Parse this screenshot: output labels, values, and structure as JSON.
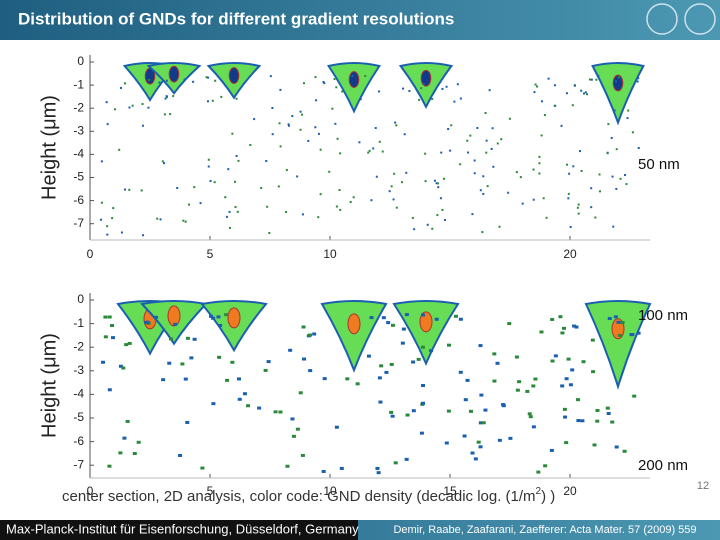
{
  "header": {
    "title": "Distribution of GNDs for different gradient resolutions"
  },
  "plots": [
    {
      "y_label": "Height (μm)",
      "y_ticks": [
        0,
        -1,
        -2,
        -3,
        -4,
        -5,
        -6,
        -7
      ],
      "x_ticks": [
        0,
        5,
        10,
        20
      ],
      "labels": [
        "50 nm"
      ]
    },
    {
      "y_label": "Height (μm)",
      "y_ticks": [
        0,
        -1,
        -2,
        -3,
        -4,
        -5,
        -6,
        -7
      ],
      "x_ticks": [
        0,
        5,
        10,
        15,
        20
      ],
      "labels": [
        "100 nm",
        "200 nm"
      ]
    }
  ],
  "caption": {
    "text": "center section, 2D analysis, color code: GND density (decadic log. (1/m",
    "superscript": "2",
    "end": ") )"
  },
  "page_number": "12",
  "footer": {
    "institute": "Max-Planck-Institut für Eisenforschung, Düsseldorf, Germany",
    "citation": "Demir, Raabe, Zaafarani, Zaefferer: Acta Mater. 57 (2009) 559"
  }
}
